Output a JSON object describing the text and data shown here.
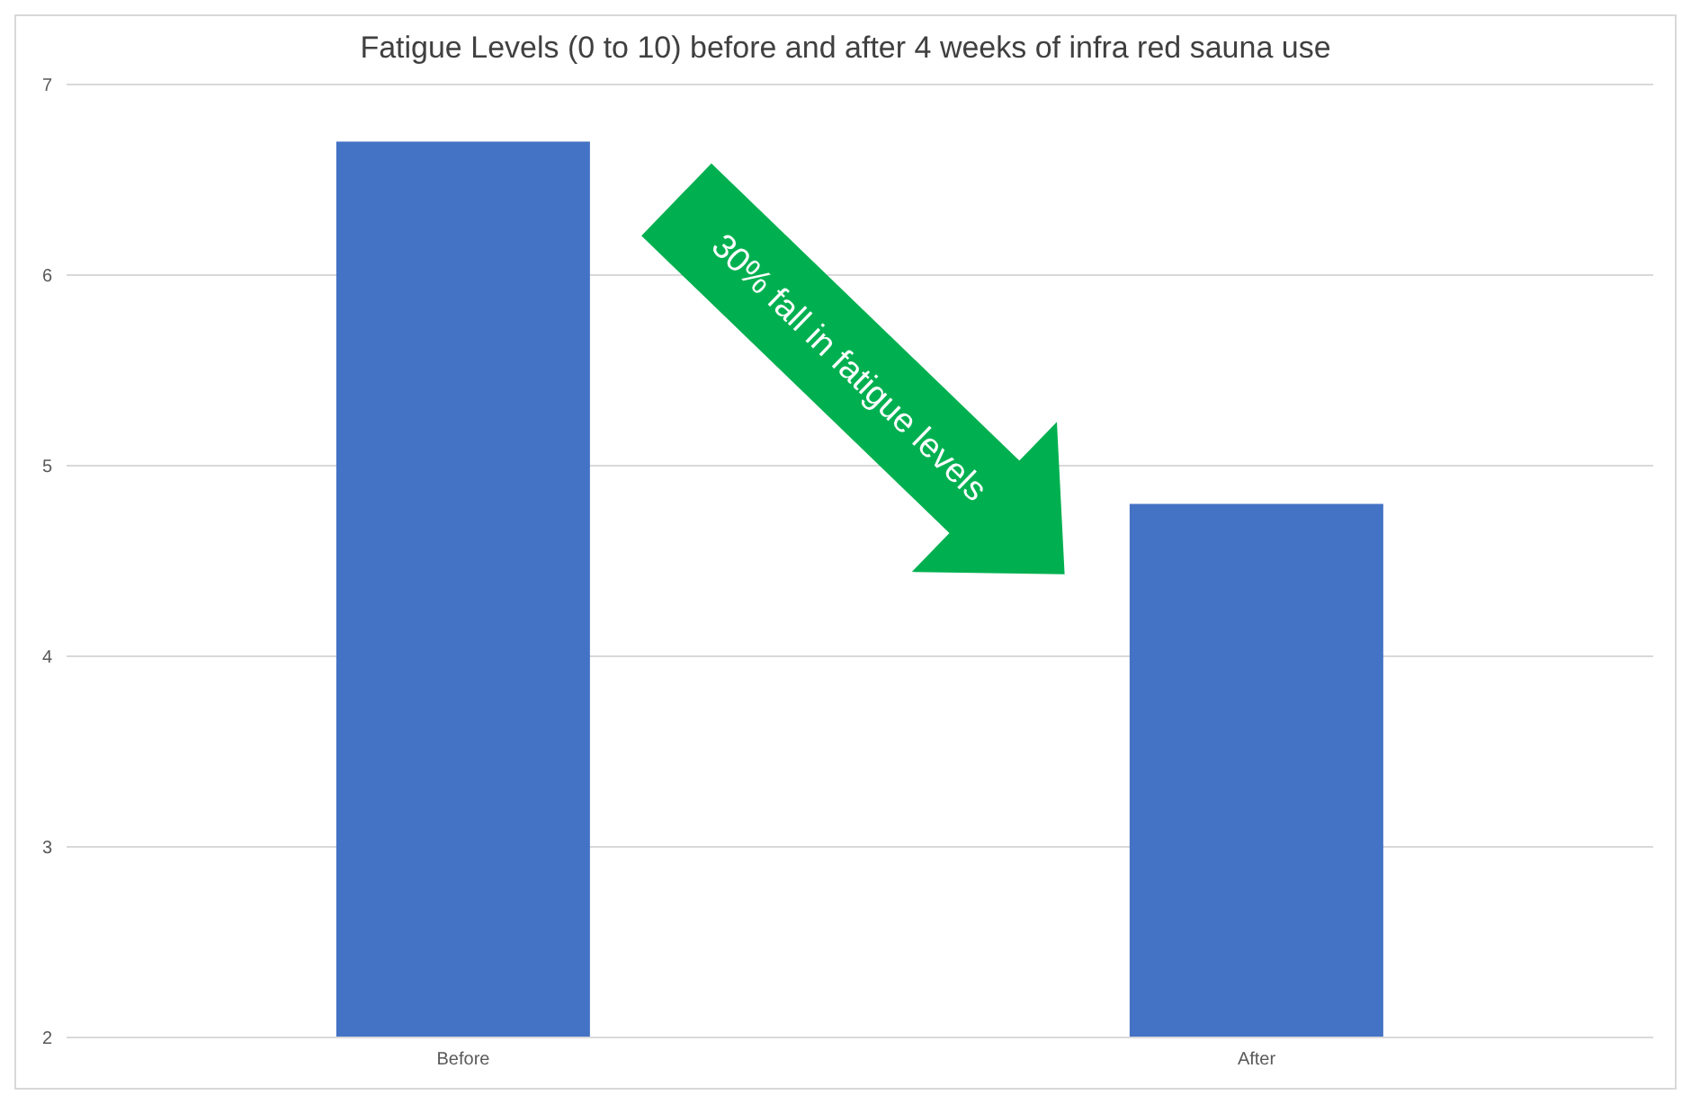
{
  "chart_data": {
    "type": "bar",
    "title": "Fatigue Levels (0 to 10) before and after 4 weeks of infra red sauna use",
    "categories": [
      "Before",
      "After"
    ],
    "values": [
      6.7,
      4.8
    ],
    "color": "#4472c4",
    "ylim": [
      2,
      7
    ],
    "yticks": [
      2,
      3,
      4,
      5,
      6,
      7
    ],
    "grid": "y",
    "annotations": [
      "30% fall in fatigue levels"
    ]
  }
}
